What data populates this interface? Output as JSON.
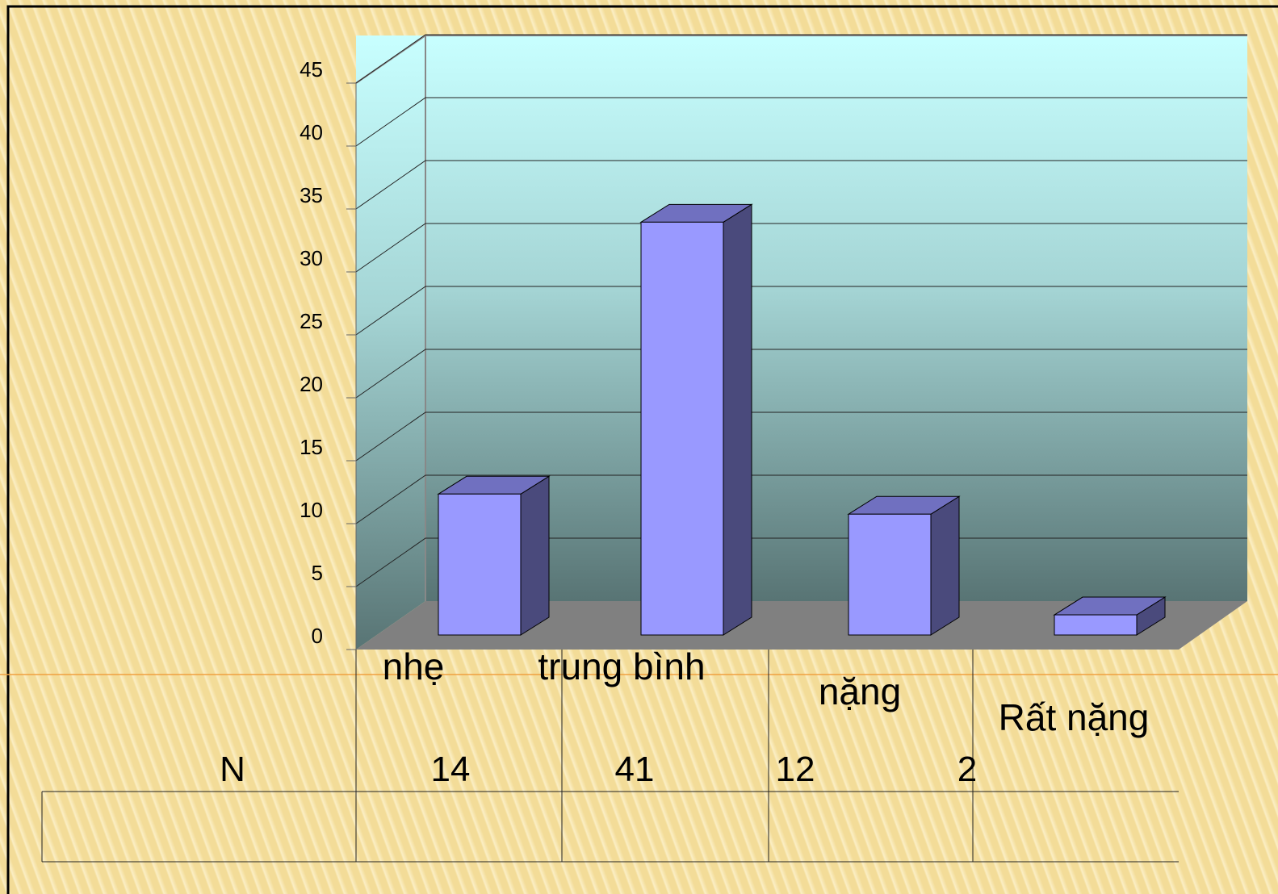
{
  "chart_data": {
    "type": "bar3d",
    "categories": [
      "nhẹ",
      "trung bình",
      "nặng",
      "Rất nặng"
    ],
    "series": [
      {
        "name": "N",
        "color": "#9999ff",
        "values": [
          14,
          41,
          12,
          2
        ]
      }
    ],
    "ylim": [
      0,
      45
    ],
    "yticks": [
      0,
      5,
      10,
      15,
      20,
      25,
      30,
      35,
      40,
      45
    ],
    "grid": true
  }
}
